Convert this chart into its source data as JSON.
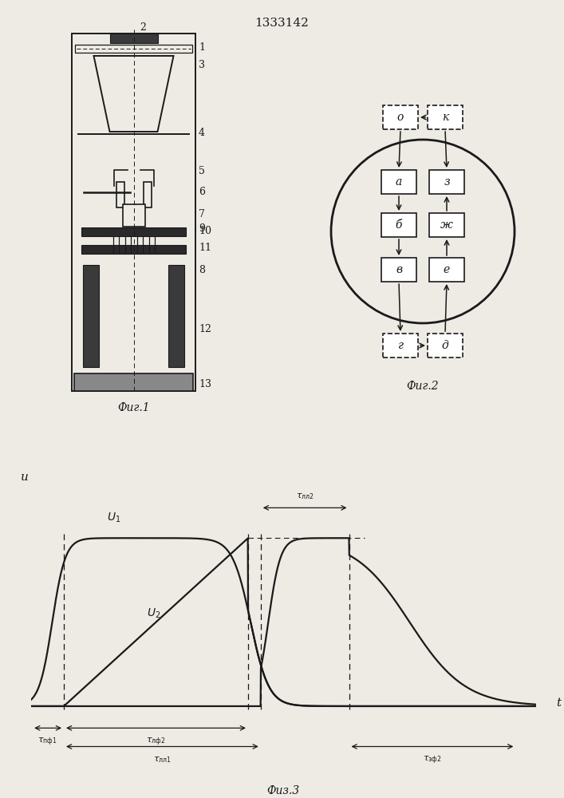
{
  "title": "1333142",
  "fig1_label": "Фиг.1",
  "fig2_label": "Фиг.2",
  "fig3_label": "Физ.3",
  "bg_color": "#eeebe5",
  "line_color": "#1a1a1a",
  "fig3_tau_labels": [
    "τпф1",
    "τлф2",
    "τлл1",
    "τлл2",
    "τзф2"
  ],
  "box_labels_top_dashed": [
    "о",
    "к"
  ],
  "box_labels_left": [
    "а",
    "б",
    "в"
  ],
  "box_labels_right": [
    "з",
    "ж",
    "е"
  ],
  "box_labels_bot_dashed": [
    "г",
    "д"
  ]
}
